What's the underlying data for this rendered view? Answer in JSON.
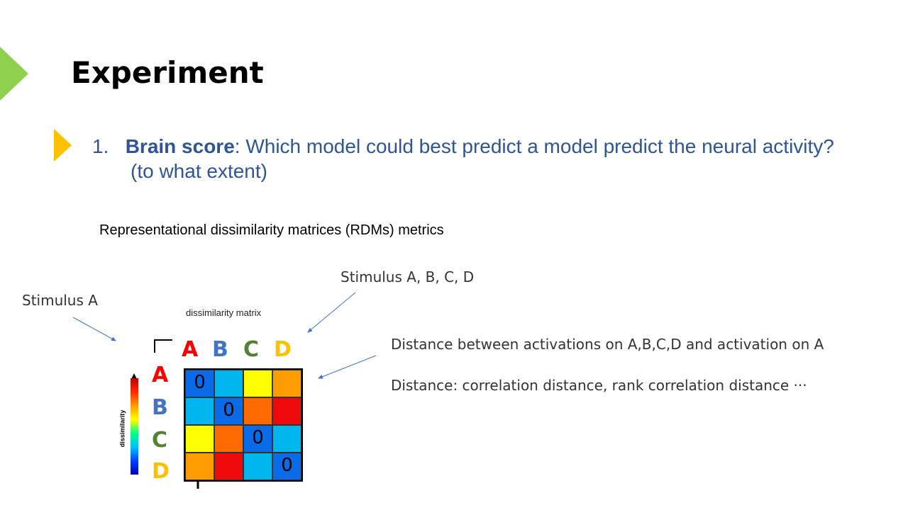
{
  "slide": {
    "title": "Experiment",
    "point_number": "1.",
    "point_bold": "Brain score",
    "point_rest": ": Which model could best predict a model predict the neural activity?",
    "point_line2": "(to what extent)",
    "heading": "Representational dissimilarity matrices (RDMs) metrics",
    "note_stimulus_a": "Stimulus A",
    "note_stimulus_abcd": "Stimulus A, B, C, D",
    "note_distance_between": "Distance between activations on A,B,C,D and activation on A",
    "note_distance_types": "Distance: correlation distance, rank correlation distance ···"
  },
  "colors": {
    "accent_green": "#8FD14F",
    "accent_orange": "#FFC000",
    "body_blue": "#2F5597",
    "label_A": "#FF0000",
    "label_B": "#4472C4",
    "label_C": "#548235",
    "label_D": "#FFC000"
  },
  "matrix": {
    "title": "dissimilarity matrix",
    "colorbar_label": "dissimilarity",
    "col_labels": [
      "A",
      "B",
      "C",
      "D"
    ],
    "row_labels": [
      "A",
      "B",
      "C",
      "D"
    ],
    "cells": [
      [
        {
          "t": "0",
          "c": "#0a6be8"
        },
        {
          "t": "",
          "c": "#00b6ee"
        },
        {
          "t": "",
          "c": "#ffff00"
        },
        {
          "t": "",
          "c": "#ff9c00"
        }
      ],
      [
        {
          "t": "",
          "c": "#00b6ee"
        },
        {
          "t": "0",
          "c": "#0a6be8"
        },
        {
          "t": "",
          "c": "#ff6a00"
        },
        {
          "t": "",
          "c": "#ee0a0a"
        }
      ],
      [
        {
          "t": "",
          "c": "#ffff00"
        },
        {
          "t": "",
          "c": "#ff6a00"
        },
        {
          "t": "0",
          "c": "#0a6be8"
        },
        {
          "t": "",
          "c": "#00b6ee"
        }
      ],
      [
        {
          "t": "",
          "c": "#ff9c00"
        },
        {
          "t": "",
          "c": "#ee0a0a"
        },
        {
          "t": "",
          "c": "#00b6ee"
        },
        {
          "t": "0",
          "c": "#0a6be8"
        }
      ]
    ]
  }
}
